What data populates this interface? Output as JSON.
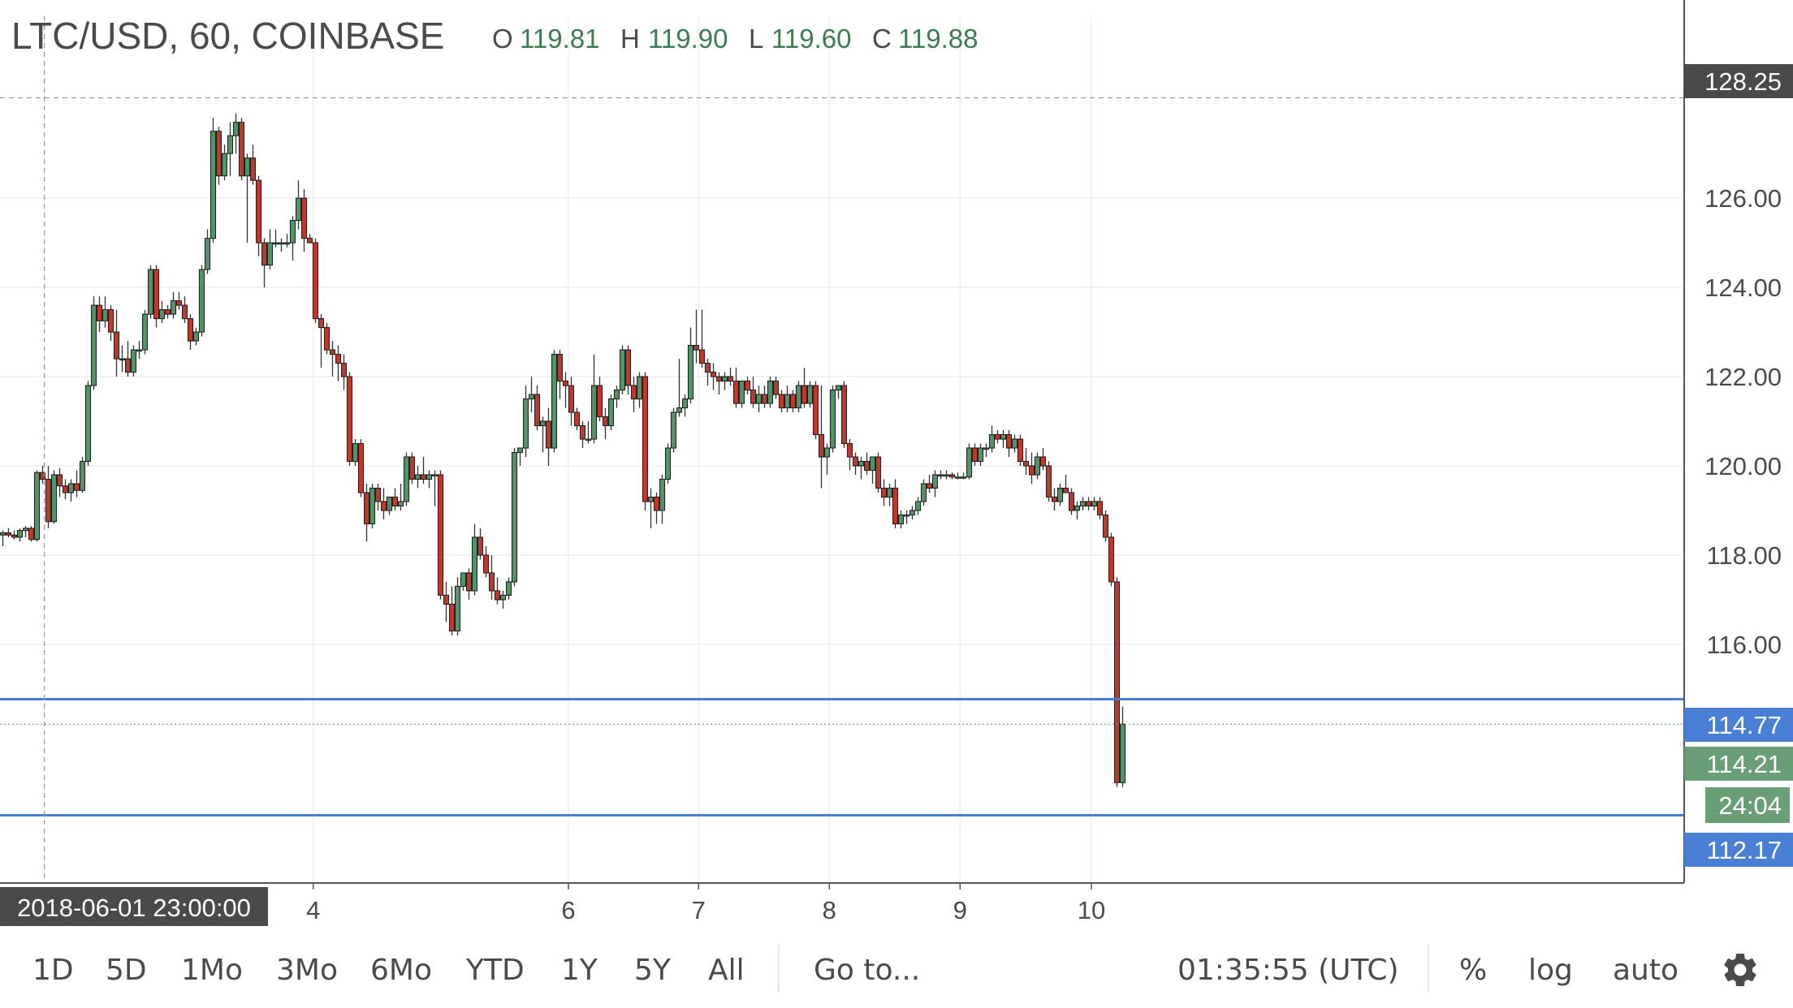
{
  "header": {
    "symbol": "LTC/USD, 60, COINBASE",
    "o_label": "O",
    "o_value": "119.81",
    "h_label": "H",
    "h_value": "119.90",
    "l_label": "L",
    "l_value": "119.60",
    "c_label": "C",
    "c_value": "119.88"
  },
  "crosshair": {
    "price_label": "128.25",
    "time_label": "2018-06-01 23:00:00"
  },
  "price_tags": {
    "line_upper": "114.77",
    "current_price": "114.21",
    "countdown": "24:04",
    "line_lower": "112.17"
  },
  "bottom_bar": {
    "ranges": [
      "1D",
      "5D",
      "1Mo",
      "3Mo",
      "6Mo",
      "YTD",
      "1Y",
      "5Y",
      "All"
    ],
    "goto": "Go to...",
    "clock": "01:35:55 (UTC)",
    "percent": "%",
    "log": "log",
    "auto": "auto"
  },
  "colors": {
    "up": "#53956a",
    "down": "#c0392b",
    "hline": "#4a7fd6",
    "countdown_bg": "#6a9e76",
    "crosshair_tag_bg": "#4a4a4a"
  },
  "icons": {
    "settings": "gear-icon"
  },
  "chart_data": {
    "type": "candlestick",
    "title": "LTC/USD, 60, COINBASE",
    "ylim": [
      110.65,
      128.95
    ],
    "y_ticks": [
      116,
      118,
      120,
      122,
      124,
      126
    ],
    "y_tick_labels": [
      "116.00",
      "118.00",
      "120.00",
      "122.00",
      "124.00",
      "126.00"
    ],
    "x_ticks": [
      {
        "label": "4",
        "index": 54.6
      },
      {
        "label": "6",
        "index": 99.5
      },
      {
        "label": "7",
        "index": 122.4
      },
      {
        "label": "8",
        "index": 145.4
      },
      {
        "label": "9",
        "index": 168.4
      },
      {
        "label": "10",
        "index": 191.5
      }
    ],
    "horizontal_lines": [
      114.77,
      112.17
    ],
    "last_price": 114.21,
    "crosshair_price": 128.25,
    "crosshair_index": 7.3,
    "grid": true,
    "candles": [
      [
        118.45,
        118.55,
        118.2,
        118.5
      ],
      [
        118.5,
        118.6,
        118.4,
        118.45
      ],
      [
        118.45,
        118.55,
        118.35,
        118.4
      ],
      [
        118.4,
        118.6,
        118.3,
        118.55
      ],
      [
        118.55,
        118.65,
        118.4,
        118.6
      ],
      [
        118.6,
        118.65,
        118.3,
        118.35
      ],
      [
        118.35,
        119.9,
        118.3,
        119.85
      ],
      [
        119.85,
        120.0,
        119.6,
        119.7
      ],
      [
        119.7,
        120.0,
        118.6,
        118.75
      ],
      [
        118.75,
        119.9,
        118.7,
        119.8
      ],
      [
        119.8,
        119.95,
        119.3,
        119.55
      ],
      [
        119.55,
        119.7,
        119.25,
        119.4
      ],
      [
        119.4,
        119.7,
        119.2,
        119.6
      ],
      [
        119.6,
        119.9,
        119.3,
        119.45
      ],
      [
        119.45,
        120.2,
        119.4,
        120.1
      ],
      [
        120.1,
        121.9,
        120.0,
        121.8
      ],
      [
        121.8,
        123.8,
        121.7,
        123.6
      ],
      [
        123.6,
        123.8,
        123.0,
        123.25
      ],
      [
        123.25,
        123.8,
        123.1,
        123.5
      ],
      [
        123.5,
        123.6,
        122.8,
        123.0
      ],
      [
        123.0,
        123.5,
        122.0,
        122.4
      ],
      [
        122.4,
        122.7,
        122.1,
        122.4
      ],
      [
        122.4,
        122.8,
        122.0,
        122.1
      ],
      [
        122.1,
        122.7,
        122.0,
        122.6
      ],
      [
        122.6,
        122.8,
        122.4,
        122.6
      ],
      [
        122.6,
        123.5,
        122.5,
        123.4
      ],
      [
        123.4,
        124.5,
        123.3,
        124.4
      ],
      [
        124.4,
        124.5,
        123.1,
        123.3
      ],
      [
        123.3,
        123.7,
        123.2,
        123.5
      ],
      [
        123.5,
        123.6,
        123.3,
        123.4
      ],
      [
        123.4,
        123.9,
        123.3,
        123.7
      ],
      [
        123.7,
        123.9,
        123.5,
        123.6
      ],
      [
        123.6,
        123.8,
        123.2,
        123.3
      ],
      [
        123.3,
        123.4,
        122.6,
        122.8
      ],
      [
        122.8,
        123.1,
        122.7,
        123.0
      ],
      [
        123.0,
        124.5,
        122.9,
        124.4
      ],
      [
        124.4,
        125.3,
        124.3,
        125.1
      ],
      [
        125.1,
        127.8,
        125.0,
        127.5
      ],
      [
        127.5,
        127.6,
        126.3,
        126.5
      ],
      [
        126.5,
        127.2,
        126.4,
        127.0
      ],
      [
        127.0,
        127.7,
        126.5,
        127.4
      ],
      [
        127.4,
        127.9,
        127.0,
        127.7
      ],
      [
        127.7,
        127.8,
        126.4,
        126.5
      ],
      [
        126.5,
        127.0,
        125.0,
        126.9
      ],
      [
        126.9,
        127.2,
        126.3,
        126.4
      ],
      [
        126.4,
        126.5,
        124.7,
        125.0
      ],
      [
        125.0,
        125.1,
        124.0,
        124.5
      ],
      [
        124.5,
        125.3,
        124.4,
        125.0
      ],
      [
        125.0,
        125.3,
        124.9,
        125.0
      ],
      [
        125.0,
        125.1,
        124.8,
        125.0
      ],
      [
        125.0,
        125.2,
        124.9,
        125.0
      ],
      [
        125.0,
        125.6,
        124.6,
        125.5
      ],
      [
        125.5,
        126.4,
        125.3,
        126.0
      ],
      [
        126.0,
        126.2,
        124.8,
        125.1
      ],
      [
        125.1,
        125.2,
        125.0,
        125.0
      ],
      [
        125.0,
        125.1,
        123.2,
        123.3
      ],
      [
        123.3,
        123.4,
        122.2,
        123.1
      ],
      [
        123.1,
        123.2,
        122.5,
        122.6
      ],
      [
        122.6,
        122.8,
        122.0,
        122.5
      ],
      [
        122.5,
        122.7,
        121.9,
        122.3
      ],
      [
        122.3,
        122.5,
        121.7,
        122.0
      ],
      [
        122.0,
        122.1,
        120.0,
        120.1
      ],
      [
        120.1,
        120.6,
        120.0,
        120.5
      ],
      [
        120.5,
        120.6,
        119.3,
        119.4
      ],
      [
        119.4,
        119.6,
        118.3,
        118.7
      ],
      [
        118.7,
        119.6,
        118.6,
        119.5
      ],
      [
        119.5,
        119.6,
        119.0,
        119.2
      ],
      [
        119.2,
        119.5,
        118.8,
        119.0
      ],
      [
        119.0,
        119.3,
        118.9,
        119.3
      ],
      [
        119.3,
        119.5,
        119.0,
        119.1
      ],
      [
        119.1,
        119.6,
        119.0,
        119.2
      ],
      [
        119.2,
        120.3,
        119.1,
        120.2
      ],
      [
        120.2,
        120.3,
        119.6,
        119.7
      ],
      [
        119.7,
        120.0,
        119.5,
        119.8
      ],
      [
        119.8,
        120.2,
        119.6,
        119.7
      ],
      [
        119.7,
        119.9,
        119.5,
        119.8
      ],
      [
        119.8,
        119.9,
        119.1,
        119.8
      ],
      [
        119.8,
        119.9,
        117.0,
        117.1
      ],
      [
        117.1,
        117.4,
        116.5,
        116.9
      ],
      [
        116.9,
        117.3,
        116.2,
        116.3
      ],
      [
        116.3,
        117.5,
        116.2,
        117.3
      ],
      [
        117.3,
        117.6,
        117.2,
        117.6
      ],
      [
        117.6,
        117.7,
        117.0,
        117.2
      ],
      [
        117.2,
        118.7,
        117.1,
        118.4
      ],
      [
        118.4,
        118.6,
        117.9,
        118.0
      ],
      [
        118.0,
        118.2,
        117.5,
        117.6
      ],
      [
        117.6,
        118.0,
        117.0,
        117.2
      ],
      [
        117.2,
        117.5,
        116.9,
        117.0
      ],
      [
        117.0,
        117.2,
        116.8,
        117.1
      ],
      [
        117.1,
        117.5,
        117.0,
        117.4
      ],
      [
        117.4,
        120.4,
        117.3,
        120.3
      ],
      [
        120.3,
        120.4,
        120.0,
        120.4
      ],
      [
        120.4,
        121.8,
        120.2,
        121.5
      ],
      [
        121.5,
        122.0,
        121.2,
        121.6
      ],
      [
        121.6,
        121.8,
        120.8,
        120.9
      ],
      [
        120.9,
        121.1,
        120.3,
        121.0
      ],
      [
        121.0,
        121.3,
        120.0,
        120.4
      ],
      [
        120.4,
        122.6,
        120.3,
        122.5
      ],
      [
        122.5,
        122.6,
        121.5,
        121.9
      ],
      [
        121.9,
        122.1,
        121.3,
        121.8
      ],
      [
        121.8,
        122.0,
        120.9,
        121.2
      ],
      [
        121.2,
        121.3,
        120.8,
        120.9
      ],
      [
        120.9,
        121.0,
        120.4,
        120.6
      ],
      [
        120.6,
        121.0,
        120.5,
        120.6
      ],
      [
        120.6,
        122.5,
        120.5,
        121.8
      ],
      [
        121.8,
        122.0,
        121.0,
        121.1
      ],
      [
        121.1,
        121.3,
        120.6,
        120.9
      ],
      [
        120.9,
        121.6,
        120.8,
        121.5
      ],
      [
        121.5,
        121.8,
        121.3,
        121.7
      ],
      [
        121.7,
        122.7,
        121.6,
        122.6
      ],
      [
        122.6,
        122.7,
        121.6,
        121.8
      ],
      [
        121.8,
        122.0,
        121.2,
        121.5
      ],
      [
        121.5,
        122.1,
        121.3,
        122.0
      ],
      [
        122.0,
        122.1,
        119.0,
        119.2
      ],
      [
        119.2,
        119.5,
        118.6,
        119.3
      ],
      [
        119.3,
        119.4,
        118.7,
        119.0
      ],
      [
        119.0,
        119.8,
        118.7,
        119.7
      ],
      [
        119.7,
        120.5,
        119.6,
        120.4
      ],
      [
        120.4,
        121.3,
        120.3,
        121.2
      ],
      [
        121.2,
        122.4,
        121.1,
        121.3
      ],
      [
        121.3,
        121.6,
        121.1,
        121.5
      ],
      [
        121.5,
        123.1,
        121.4,
        122.7
      ],
      [
        122.7,
        123.5,
        122.3,
        122.6
      ],
      [
        122.6,
        123.5,
        122.2,
        122.3
      ],
      [
        122.3,
        122.4,
        121.8,
        122.1
      ],
      [
        122.1,
        122.3,
        121.7,
        122.0
      ],
      [
        122.0,
        122.1,
        121.6,
        121.9
      ],
      [
        121.9,
        122.1,
        121.7,
        122.0
      ],
      [
        122.0,
        122.2,
        121.8,
        121.9
      ],
      [
        121.9,
        122.2,
        121.3,
        121.4
      ],
      [
        121.4,
        121.9,
        121.3,
        121.9
      ],
      [
        121.9,
        122.0,
        121.6,
        121.7
      ],
      [
        121.7,
        122.0,
        121.3,
        121.4
      ],
      [
        121.4,
        121.8,
        121.2,
        121.6
      ],
      [
        121.6,
        121.8,
        121.3,
        121.4
      ],
      [
        121.4,
        122.0,
        121.3,
        121.9
      ],
      [
        121.9,
        122.0,
        121.5,
        121.6
      ],
      [
        121.6,
        121.7,
        121.2,
        121.3
      ],
      [
        121.3,
        121.8,
        121.2,
        121.6
      ],
      [
        121.6,
        121.7,
        121.2,
        121.3
      ],
      [
        121.3,
        121.9,
        121.2,
        121.8
      ],
      [
        121.8,
        122.2,
        121.3,
        121.4
      ],
      [
        121.4,
        121.9,
        121.3,
        121.8
      ],
      [
        121.8,
        121.9,
        120.6,
        120.7
      ],
      [
        120.7,
        121.8,
        119.5,
        120.2
      ],
      [
        120.2,
        120.5,
        119.8,
        120.4
      ],
      [
        120.4,
        121.8,
        120.3,
        121.7
      ],
      [
        121.7,
        121.8,
        121.5,
        121.8
      ],
      [
        121.8,
        121.9,
        120.4,
        120.5
      ],
      [
        120.5,
        120.6,
        119.9,
        120.2
      ],
      [
        120.2,
        120.3,
        119.8,
        120.0
      ],
      [
        120.0,
        120.2,
        119.7,
        120.1
      ],
      [
        120.1,
        120.3,
        119.8,
        119.9
      ],
      [
        119.9,
        120.2,
        119.6,
        120.2
      ],
      [
        120.2,
        120.3,
        119.4,
        119.5
      ],
      [
        119.5,
        119.7,
        119.1,
        119.3
      ],
      [
        119.3,
        119.6,
        119.1,
        119.5
      ],
      [
        119.5,
        119.7,
        118.6,
        118.7
      ],
      [
        118.7,
        119.0,
        118.6,
        118.9
      ],
      [
        118.9,
        119.0,
        118.7,
        118.9
      ],
      [
        118.9,
        119.1,
        118.8,
        119.0
      ],
      [
        119.0,
        119.3,
        118.9,
        119.2
      ],
      [
        119.2,
        119.7,
        119.1,
        119.6
      ],
      [
        119.6,
        119.8,
        119.4,
        119.5
      ],
      [
        119.5,
        119.9,
        119.3,
        119.8
      ],
      [
        119.8,
        119.9,
        119.7,
        119.8
      ],
      [
        119.8,
        119.9,
        119.7,
        119.8
      ],
      [
        119.8,
        119.85,
        119.7,
        119.75
      ],
      [
        119.75,
        119.85,
        119.7,
        119.75
      ],
      [
        119.75,
        119.85,
        119.7,
        119.75
      ],
      [
        119.75,
        120.5,
        119.7,
        120.4
      ],
      [
        120.4,
        120.5,
        120.0,
        120.1
      ],
      [
        120.1,
        120.5,
        120.0,
        120.4
      ],
      [
        120.4,
        120.5,
        120.2,
        120.4
      ],
      [
        120.4,
        120.9,
        120.3,
        120.7
      ],
      [
        120.7,
        120.8,
        120.5,
        120.6
      ],
      [
        120.6,
        120.8,
        120.4,
        120.7
      ],
      [
        120.7,
        120.8,
        120.2,
        120.4
      ],
      [
        120.4,
        120.7,
        120.3,
        120.6
      ],
      [
        120.6,
        120.7,
        120.0,
        120.1
      ],
      [
        120.1,
        120.4,
        119.8,
        120.0
      ],
      [
        120.0,
        120.3,
        119.6,
        119.8
      ],
      [
        119.8,
        120.3,
        119.7,
        120.2
      ],
      [
        120.2,
        120.4,
        119.9,
        120.0
      ],
      [
        120.0,
        120.1,
        119.2,
        119.3
      ],
      [
        119.3,
        119.5,
        119.0,
        119.2
      ],
      [
        119.2,
        119.6,
        119.1,
        119.5
      ],
      [
        119.5,
        119.8,
        119.4,
        119.4
      ],
      [
        119.4,
        119.5,
        118.9,
        119.0
      ],
      [
        119.0,
        119.2,
        118.8,
        119.1
      ],
      [
        119.1,
        119.3,
        119.0,
        119.2
      ],
      [
        119.2,
        119.3,
        119.0,
        119.1
      ],
      [
        119.1,
        119.3,
        119.0,
        119.2
      ],
      [
        119.2,
        119.3,
        118.8,
        118.9
      ],
      [
        118.9,
        119.0,
        118.3,
        118.4
      ],
      [
        118.4,
        118.5,
        117.3,
        117.4
      ],
      [
        117.4,
        117.5,
        112.8,
        112.9
      ],
      [
        112.9,
        114.6,
        112.8,
        114.21
      ]
    ]
  }
}
